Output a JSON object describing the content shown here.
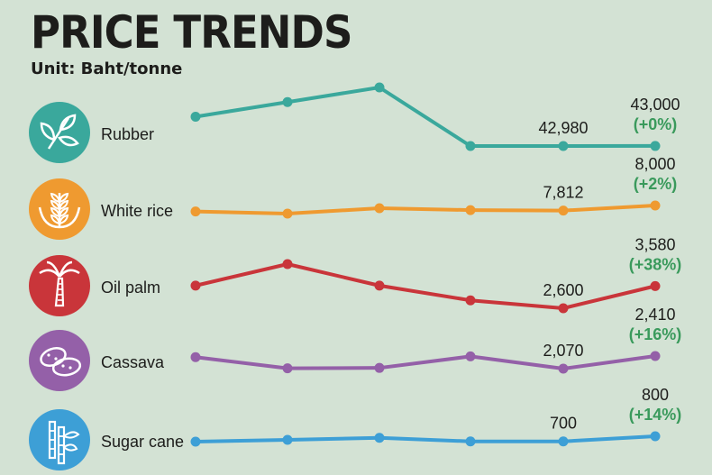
{
  "title": "PRICE TRENDS",
  "unit": "Unit: Baht/tonne",
  "colors": {
    "rubber": "#3aa89c",
    "white_rice": "#ef9a30",
    "oil_palm": "#c9353a",
    "cassava": "#9460a8",
    "sugar_cane": "#3d9fd6",
    "change": "#3a9a5c"
  },
  "chart_data": [
    {
      "type": "line",
      "name": "Rubber",
      "icon": "leaves-icon",
      "values": [
        53000,
        58000,
        63000,
        42980,
        42980,
        43000
      ],
      "labels": [
        "",
        "",
        "",
        "",
        "42,980",
        "43,000"
      ],
      "change": "(+0%)"
    },
    {
      "type": "line",
      "name": "White rice",
      "icon": "wheat-icon",
      "values": [
        7780,
        7700,
        7900,
        7830,
        7812,
        8000
      ],
      "labels": [
        "",
        "",
        "",
        "",
        "7,812",
        "8,000"
      ],
      "change": "(+2%)"
    },
    {
      "type": "line",
      "name": "Oil palm",
      "icon": "palm-tree-icon",
      "values": [
        3600,
        4550,
        3600,
        2950,
        2600,
        3580
      ],
      "labels": [
        "",
        "",
        "",
        "",
        "2,600",
        "3,580"
      ],
      "change": "(+38%)"
    },
    {
      "type": "line",
      "name": "Cassava",
      "icon": "cassava-icon",
      "values": [
        2380,
        2080,
        2090,
        2400,
        2070,
        2410
      ],
      "labels": [
        "",
        "",
        "",
        "",
        "2,070",
        "2,410"
      ],
      "change": "(+16%)"
    },
    {
      "type": "line",
      "name": "Sugar cane",
      "icon": "sugar-cane-icon",
      "values": [
        695,
        730,
        770,
        700,
        700,
        800
      ],
      "labels": [
        "",
        "",
        "",
        "",
        "700",
        "800"
      ],
      "change": "(+14%)"
    }
  ]
}
